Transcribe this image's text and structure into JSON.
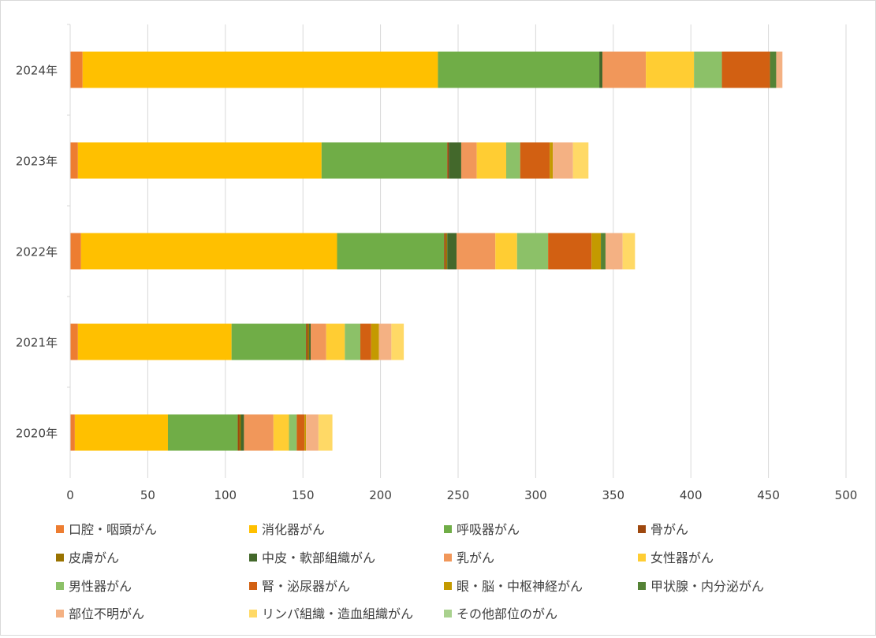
{
  "chart_data": {
    "type": "bar",
    "orientation": "horizontal",
    "stacked": true,
    "categories": [
      "2020年",
      "2021年",
      "2022年",
      "2023年",
      "2024年"
    ],
    "xlim": [
      0,
      500
    ],
    "xticks": [
      0,
      50,
      100,
      150,
      200,
      250,
      300,
      350,
      400,
      450,
      500
    ],
    "grid": true,
    "legend_position": "bottom",
    "series": [
      {
        "name": "口腔・咽頭がん",
        "color": "#ED7D31",
        "values": [
          3,
          5,
          7,
          5,
          8
        ]
      },
      {
        "name": "消化器がん",
        "color": "#FFC000",
        "values": [
          60,
          99,
          165,
          157,
          229
        ]
      },
      {
        "name": "呼吸器がん",
        "color": "#70AD47",
        "values": [
          45,
          48,
          69,
          81,
          104
        ]
      },
      {
        "name": "骨がん",
        "color": "#9E480E",
        "values": [
          1,
          1,
          1,
          1,
          0
        ]
      },
      {
        "name": "皮膚がん",
        "color": "#997300",
        "values": [
          1,
          1,
          1,
          0,
          0
        ]
      },
      {
        "name": "中皮・軟部組織がん",
        "color": "#43682B",
        "values": [
          2,
          1,
          6,
          8,
          2
        ]
      },
      {
        "name": "乳がん",
        "color": "#F1975A",
        "values": [
          19,
          10,
          25,
          10,
          28
        ]
      },
      {
        "name": "女性器がん",
        "color": "#FFCD33",
        "values": [
          10,
          12,
          14,
          19,
          31
        ]
      },
      {
        "name": "男性器がん",
        "color": "#8CC168",
        "values": [
          5,
          10,
          20,
          9,
          18
        ]
      },
      {
        "name": "腎・泌尿器がん",
        "color": "#D26012",
        "values": [
          5,
          7,
          28,
          19,
          31
        ]
      },
      {
        "name": "眼・脳・中枢神経がん",
        "color": "#C49A00",
        "values": [
          1,
          5,
          6,
          2,
          0
        ]
      },
      {
        "name": "甲状腺・内分泌がん",
        "color": "#548235",
        "values": [
          0,
          0,
          3,
          0,
          4
        ]
      },
      {
        "name": "部位不明がん",
        "color": "#F4B183",
        "values": [
          8,
          8,
          11,
          13,
          4
        ]
      },
      {
        "name": "リンパ組織・造血組織がん",
        "color": "#FFD966",
        "values": [
          9,
          8,
          8,
          10,
          0
        ]
      },
      {
        "name": "その他部位のがん",
        "color": "#A9D18E",
        "values": [
          0,
          0,
          0,
          0,
          0
        ]
      }
    ]
  }
}
